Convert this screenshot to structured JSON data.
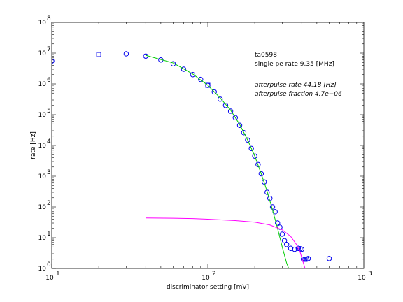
{
  "chart_data": {
    "type": "scatter",
    "xscale": "log",
    "yscale": "log",
    "xlim": [
      10,
      1000
    ],
    "ylim": [
      1,
      100000000
    ],
    "xlabel": "discriminator setting [mV]",
    "ylabel": "rate [Hz]",
    "x_ticks": [
      {
        "value": 10,
        "base": "10",
        "exp": "1"
      },
      {
        "value": 100,
        "base": "10",
        "exp": "2"
      },
      {
        "value": 1000,
        "base": "10",
        "exp": "3"
      }
    ],
    "y_ticks": [
      {
        "value": 1,
        "base": "10",
        "exp": "0"
      },
      {
        "value": 10,
        "base": "10",
        "exp": "1"
      },
      {
        "value": 100,
        "base": "10",
        "exp": "2"
      },
      {
        "value": 1000,
        "base": "10",
        "exp": "3"
      },
      {
        "value": 10000,
        "base": "10",
        "exp": "4"
      },
      {
        "value": 100000,
        "base": "10",
        "exp": "5"
      },
      {
        "value": 1000000,
        "base": "10",
        "exp": "6"
      },
      {
        "value": 10000000,
        "base": "10",
        "exp": "7"
      },
      {
        "value": 100000000,
        "base": "10",
        "exp": "8"
      }
    ],
    "annotations": {
      "id": "ta0598",
      "rate": "single pe rate 9.35 [MHz]",
      "ap_rate": "afterpulse rate 44.18 [Hz]",
      "ap_fraction": "afterpulse fraction 4.7e−06"
    },
    "series": [
      {
        "marker": "circle",
        "color": "#0000ee",
        "points": [
          [
            10,
            5500000
          ],
          [
            30,
            9500000
          ],
          [
            40,
            8000000
          ],
          [
            50,
            6000000
          ],
          [
            60,
            4500000
          ],
          [
            70,
            3000000
          ],
          [
            80,
            2000000
          ],
          [
            90,
            1400000
          ],
          [
            100,
            900000
          ],
          [
            110,
            550000
          ],
          [
            120,
            320000
          ],
          [
            130,
            200000
          ],
          [
            140,
            130000
          ],
          [
            150,
            80000
          ],
          [
            160,
            45000
          ],
          [
            170,
            26000
          ],
          [
            180,
            15000
          ],
          [
            190,
            8000
          ],
          [
            200,
            4500
          ],
          [
            210,
            2400
          ],
          [
            220,
            1200
          ],
          [
            230,
            650
          ],
          [
            240,
            300
          ],
          [
            250,
            190
          ],
          [
            260,
            100
          ],
          [
            270,
            70
          ],
          [
            280,
            30
          ],
          [
            290,
            22
          ],
          [
            300,
            13
          ],
          [
            310,
            8
          ],
          [
            320,
            6
          ],
          [
            340,
            4.5
          ],
          [
            360,
            4.2
          ],
          [
            380,
            4.5
          ],
          [
            390,
            4.4
          ],
          [
            400,
            4.2
          ],
          [
            410,
            2.0
          ],
          [
            420,
            2.0
          ],
          [
            430,
            2.0
          ],
          [
            440,
            2.1
          ],
          [
            600,
            2.1
          ]
        ]
      },
      {
        "marker": "square",
        "color": "#0000ee",
        "points": [
          [
            20,
            9000000
          ],
          [
            100,
            900000
          ]
        ]
      },
      {
        "type": "line",
        "color": "#00cc00",
        "points": [
          [
            40,
            8500000
          ],
          [
            60,
            4800000
          ],
          [
            80,
            2100000
          ],
          [
            100,
            900000
          ],
          [
            120,
            350000
          ],
          [
            140,
            140000
          ],
          [
            160,
            48000
          ],
          [
            180,
            15000
          ],
          [
            200,
            4500
          ],
          [
            220,
            1200
          ],
          [
            240,
            320
          ],
          [
            260,
            80
          ],
          [
            280,
            20
          ],
          [
            300,
            5
          ],
          [
            320,
            1.5
          ],
          [
            330,
            1
          ]
        ]
      },
      {
        "type": "line",
        "color": "#ff00ff",
        "points": [
          [
            40,
            44
          ],
          [
            60,
            43
          ],
          [
            80,
            42
          ],
          [
            100,
            40
          ],
          [
            150,
            36
          ],
          [
            200,
            32
          ],
          [
            250,
            26
          ],
          [
            300,
            18
          ],
          [
            340,
            11
          ],
          [
            370,
            6
          ],
          [
            390,
            3.5
          ],
          [
            410,
            1.5
          ],
          [
            420,
            1
          ]
        ]
      }
    ]
  }
}
